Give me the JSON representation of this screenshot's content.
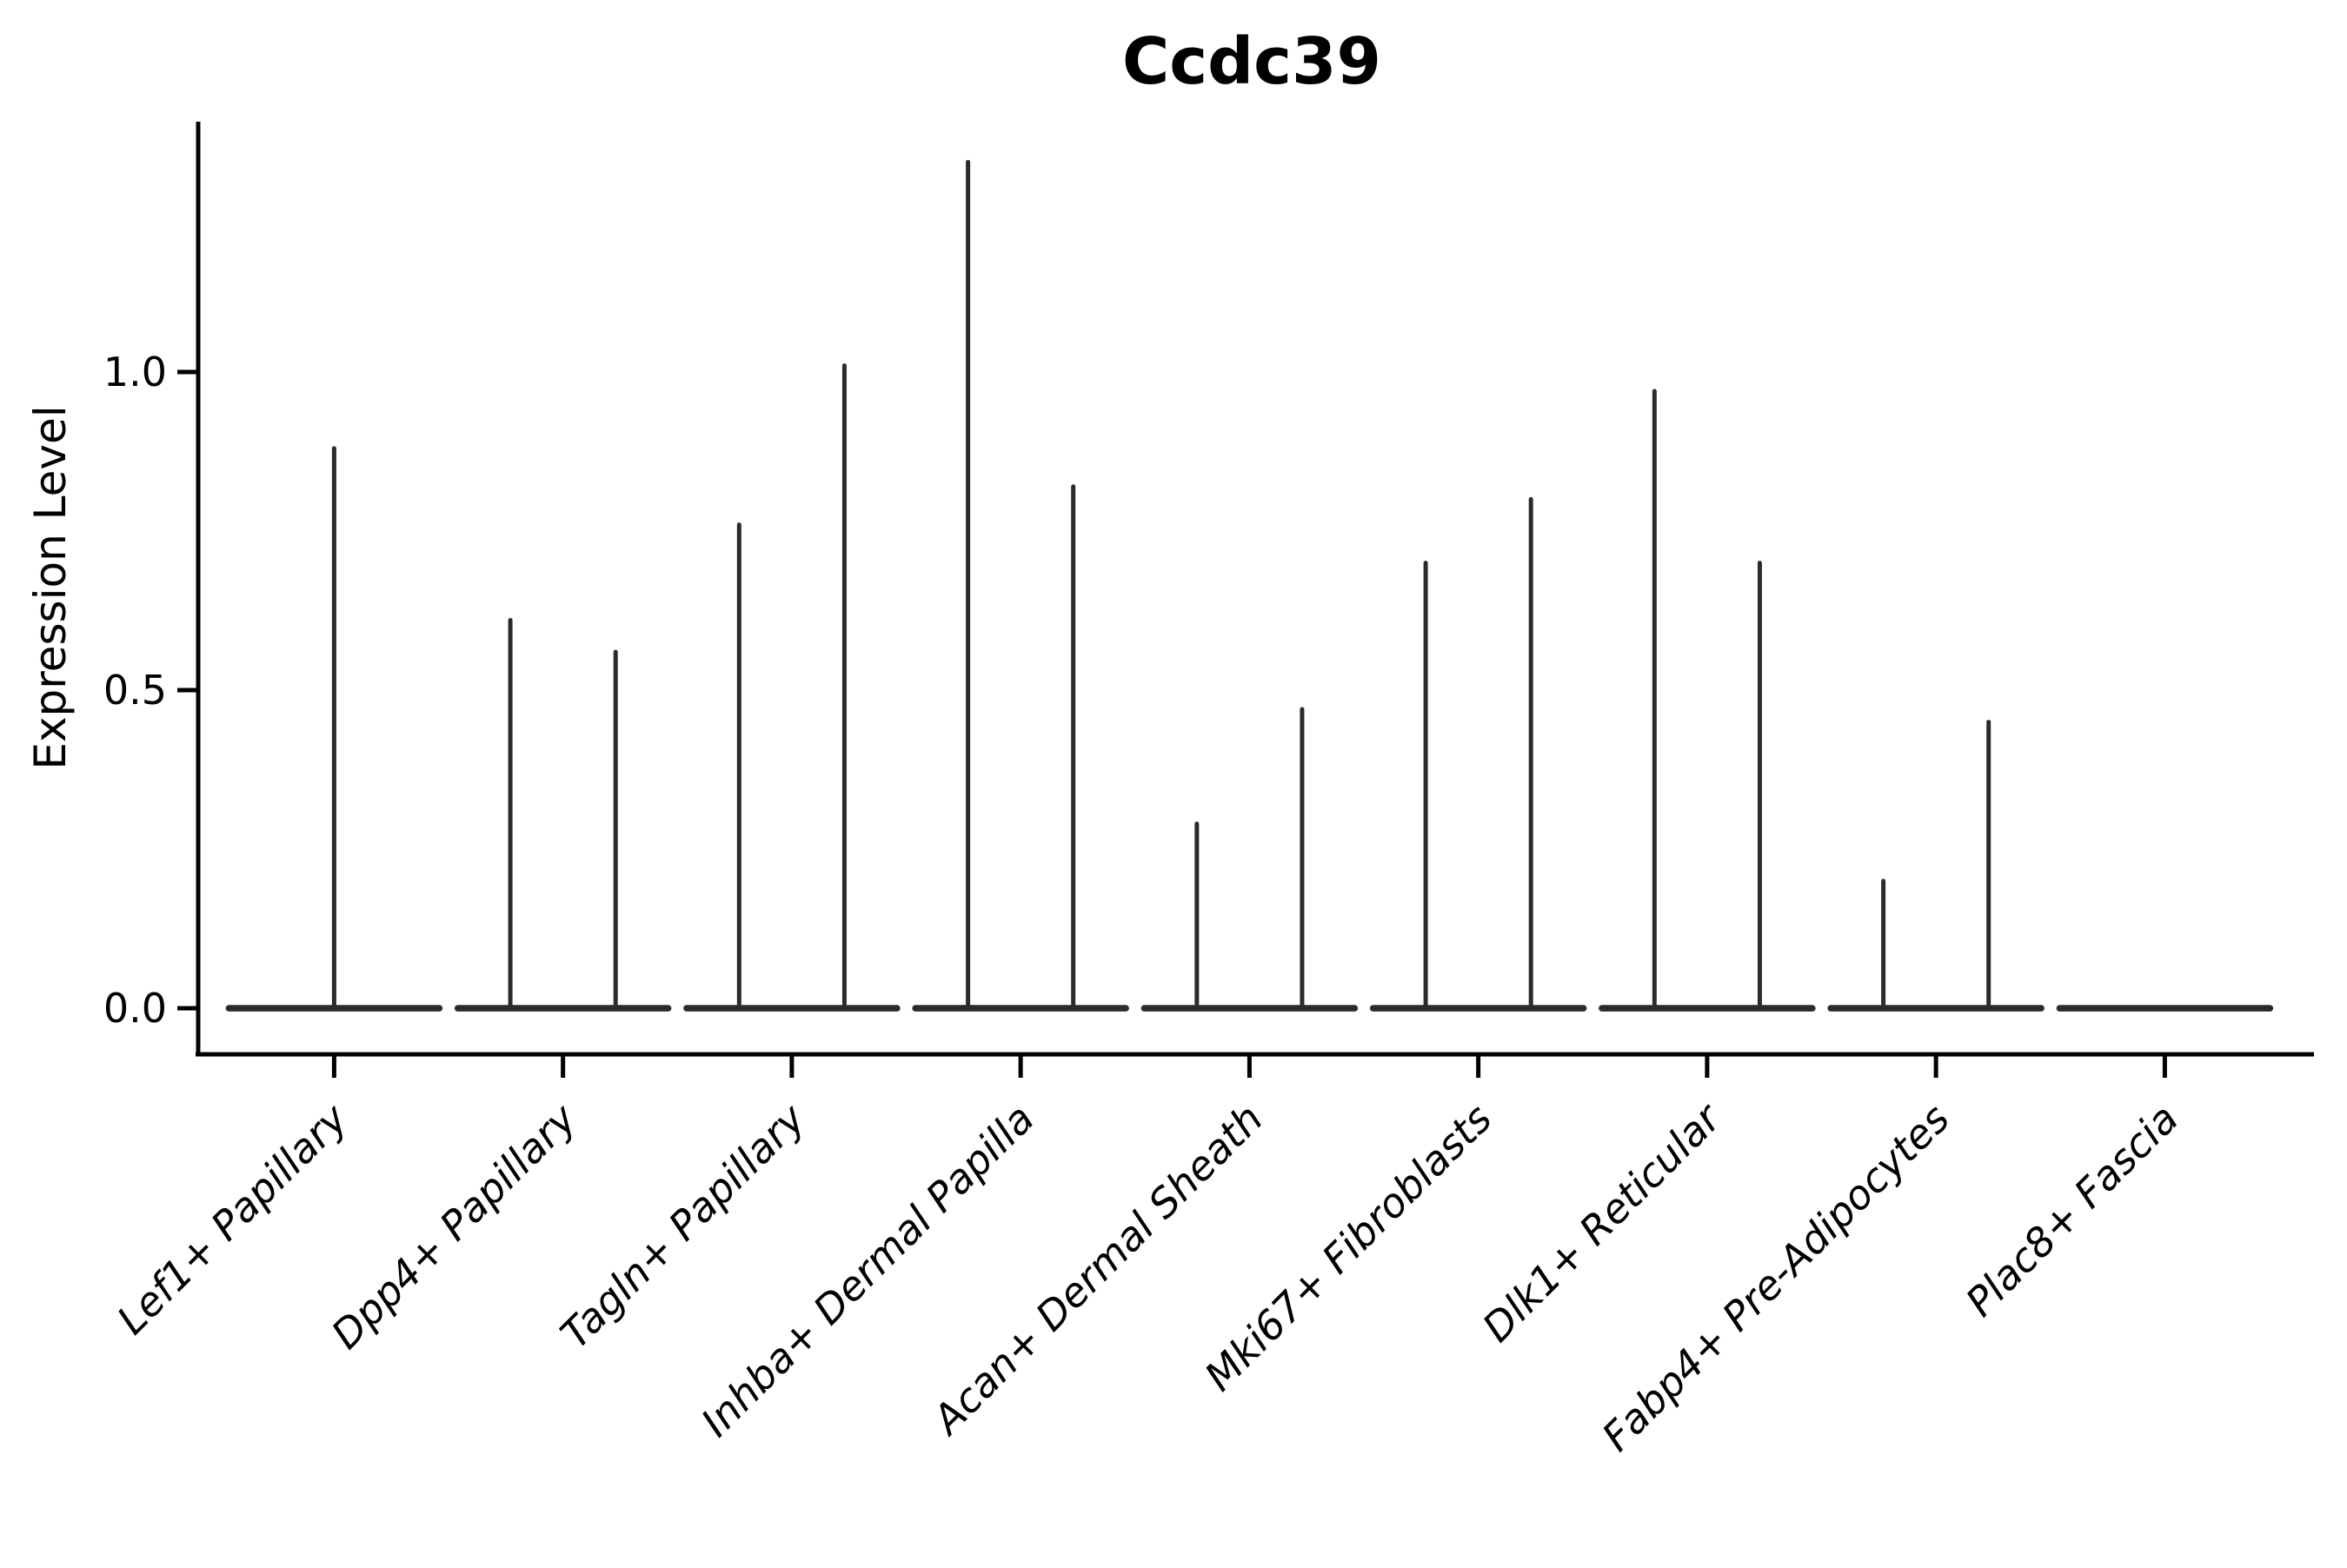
{
  "title": "Ccdc39",
  "y_axis": {
    "label": "Expression Level",
    "tick_labels": [
      "0.0",
      "0.5",
      "1.0"
    ]
  },
  "chart_data": {
    "type": "violin",
    "title": "Ccdc39",
    "xlabel": "",
    "ylabel": "Expression Level",
    "ylim": [
      -0.07,
      1.39
    ],
    "yticks": [
      0.0,
      0.5,
      1.0
    ],
    "grid": false,
    "legend": null,
    "categories": [
      "Lef1+ Papillary",
      "Dpp4+ Papillary",
      "Tagln+ Papillary",
      "Inhba+ Dermal Papilla",
      "Acan+ Dermal Sheath",
      "Mki67+ Fibroblasts",
      "Dlk1+ Reticular",
      "Fabp4+ Pre-Adipocytes",
      "Plac8+ Fascia"
    ],
    "violins": [
      {
        "category": "Lef1+ Papillary",
        "baseline_value": 0,
        "spikes": [
          {
            "offset": 0,
            "max": 0.88
          }
        ]
      },
      {
        "category": "Dpp4+ Papillary",
        "baseline_value": 0,
        "spikes": [
          {
            "offset": -0.23,
            "max": 0.61
          },
          {
            "offset": 0.23,
            "max": 0.56
          }
        ]
      },
      {
        "category": "Tagln+ Papillary",
        "baseline_value": 0,
        "spikes": [
          {
            "offset": -0.23,
            "max": 0.76
          },
          {
            "offset": 0.23,
            "max": 1.01
          }
        ]
      },
      {
        "category": "Inhba+ Dermal Papilla",
        "baseline_value": 0,
        "spikes": [
          {
            "offset": -0.23,
            "max": 1.33
          },
          {
            "offset": 0.23,
            "max": 0.82
          }
        ]
      },
      {
        "category": "Acan+ Dermal Sheath",
        "baseline_value": 0,
        "spikes": [
          {
            "offset": -0.23,
            "max": 0.29
          },
          {
            "offset": 0.23,
            "max": 0.47
          }
        ]
      },
      {
        "category": "Mki67+ Fibroblasts",
        "baseline_value": 0,
        "spikes": [
          {
            "offset": -0.23,
            "max": 0.7
          },
          {
            "offset": 0.23,
            "max": 0.8
          }
        ]
      },
      {
        "category": "Dlk1+ Reticular",
        "baseline_value": 0,
        "spikes": [
          {
            "offset": -0.23,
            "max": 0.97
          },
          {
            "offset": 0.23,
            "max": 0.7
          }
        ]
      },
      {
        "category": "Fabp4+ Pre-Adipocytes",
        "baseline_value": 0,
        "spikes": [
          {
            "offset": -0.23,
            "max": 0.2
          },
          {
            "offset": 0.23,
            "max": 0.45
          }
        ]
      },
      {
        "category": "Plac8+ Fascia",
        "baseline_value": 0,
        "spikes": []
      }
    ],
    "colors": {
      "violin": "#2b2b2b",
      "axis": "#000000",
      "text": "#000000",
      "background": "#ffffff"
    }
  }
}
